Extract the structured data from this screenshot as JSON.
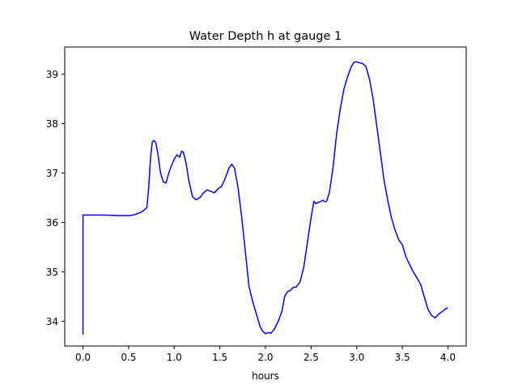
{
  "chart_data": {
    "type": "line",
    "title": "Water Depth h at gauge 1",
    "xlabel": "hours",
    "ylabel": "",
    "xlim": [
      -0.2,
      4.2
    ],
    "ylim": [
      33.5,
      39.55
    ],
    "xticks": [
      {
        "value": 0.0,
        "label": "0.0"
      },
      {
        "value": 0.5,
        "label": "0.5"
      },
      {
        "value": 1.0,
        "label": "1.0"
      },
      {
        "value": 1.5,
        "label": "1.5"
      },
      {
        "value": 2.0,
        "label": "2.0"
      },
      {
        "value": 2.5,
        "label": "2.5"
      },
      {
        "value": 3.0,
        "label": "3.0"
      },
      {
        "value": 3.5,
        "label": "3.5"
      },
      {
        "value": 4.0,
        "label": "4.0"
      }
    ],
    "yticks": [
      {
        "value": 34,
        "label": "34"
      },
      {
        "value": 35,
        "label": "35"
      },
      {
        "value": 36,
        "label": "36"
      },
      {
        "value": 37,
        "label": "37"
      },
      {
        "value": 38,
        "label": "38"
      },
      {
        "value": 39,
        "label": "39"
      }
    ],
    "grid": false,
    "series": [
      {
        "color": "#0000ff",
        "x": [
          0.0,
          0.0,
          0.05,
          0.2,
          0.4,
          0.5,
          0.55,
          0.6,
          0.65,
          0.7,
          0.72,
          0.74,
          0.76,
          0.78,
          0.8,
          0.82,
          0.85,
          0.88,
          0.91,
          0.94,
          0.97,
          1.0,
          1.03,
          1.06,
          1.08,
          1.1,
          1.13,
          1.16,
          1.2,
          1.24,
          1.28,
          1.32,
          1.36,
          1.4,
          1.44,
          1.48,
          1.52,
          1.56,
          1.6,
          1.63,
          1.66,
          1.7,
          1.74,
          1.78,
          1.82,
          1.86,
          1.9,
          1.94,
          1.97,
          2.0,
          2.03,
          2.06,
          2.1,
          2.14,
          2.18,
          2.21,
          2.24,
          2.27,
          2.3,
          2.34,
          2.38,
          2.42,
          2.46,
          2.5,
          2.53,
          2.55,
          2.57,
          2.6,
          2.63,
          2.65,
          2.67,
          2.7,
          2.74,
          2.78,
          2.82,
          2.86,
          2.9,
          2.94,
          2.97,
          3.0,
          3.03,
          3.06,
          3.1,
          3.14,
          3.18,
          3.22,
          3.26,
          3.3,
          3.34,
          3.38,
          3.42,
          3.46,
          3.5,
          3.54,
          3.58,
          3.62,
          3.66,
          3.7,
          3.74,
          3.78,
          3.82,
          3.86,
          3.9,
          3.94,
          3.97,
          4.0
        ],
        "y": [
          33.73,
          36.15,
          36.15,
          36.15,
          36.14,
          36.14,
          36.15,
          36.18,
          36.22,
          36.3,
          36.7,
          37.3,
          37.63,
          37.66,
          37.6,
          37.4,
          37.0,
          36.82,
          36.8,
          37.0,
          37.15,
          37.28,
          37.37,
          37.32,
          37.44,
          37.42,
          37.2,
          36.85,
          36.52,
          36.46,
          36.5,
          36.6,
          36.66,
          36.63,
          36.6,
          36.68,
          36.73,
          36.9,
          37.1,
          37.18,
          37.1,
          36.7,
          36.1,
          35.4,
          34.7,
          34.4,
          34.15,
          33.9,
          33.8,
          33.75,
          33.77,
          33.76,
          33.85,
          34.0,
          34.2,
          34.5,
          34.6,
          34.62,
          34.68,
          34.7,
          34.8,
          35.1,
          35.6,
          36.1,
          36.43,
          36.38,
          36.4,
          36.42,
          36.45,
          36.42,
          36.43,
          36.6,
          37.1,
          37.8,
          38.3,
          38.7,
          38.95,
          39.15,
          39.24,
          39.25,
          39.23,
          39.22,
          39.16,
          38.9,
          38.5,
          37.95,
          37.4,
          36.85,
          36.45,
          36.1,
          35.85,
          35.65,
          35.55,
          35.3,
          35.15,
          35.0,
          34.88,
          34.75,
          34.5,
          34.25,
          34.12,
          34.07,
          34.15,
          34.2,
          34.25,
          34.27
        ]
      }
    ]
  }
}
